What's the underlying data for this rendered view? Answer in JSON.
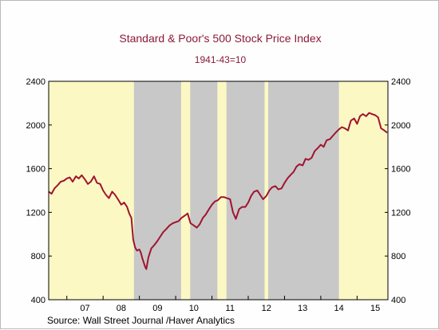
{
  "chart_data": {
    "type": "line",
    "title": "Standard & Poor's 500 Stock Price Index",
    "subtitle": "1941-43=10",
    "source": "Source:  Wall Street Journal /Haver Analytics",
    "ylim": [
      400,
      2400
    ],
    "yticks": [
      400,
      800,
      1200,
      1600,
      2000,
      2400
    ],
    "xlim": [
      2006.5,
      2015.85
    ],
    "x_tick_labels": [
      "07",
      "08",
      "09",
      "10",
      "11",
      "12",
      "13",
      "14",
      "15"
    ],
    "x_tick_positions": [
      2007.5,
      2008.5,
      2009.5,
      2010.5,
      2011.5,
      2012.5,
      2013.5,
      2014.5,
      2015.5
    ],
    "background_color": "#fbf8c4",
    "shade_color": "#c8c8c8",
    "line_color": "#a0142e",
    "shaded_periods": [
      [
        2008.85,
        2010.15
      ],
      [
        2010.4,
        2011.15
      ],
      [
        2011.4,
        2012.45
      ],
      [
        2012.55,
        2014.5
      ]
    ],
    "series": [
      {
        "x": [
          2006.5,
          2006.58,
          2006.66,
          2006.75,
          2006.83,
          2006.92,
          2007.0,
          2007.08,
          2007.16,
          2007.25,
          2007.33,
          2007.41,
          2007.5,
          2007.58,
          2007.66,
          2007.75,
          2007.83,
          2007.92,
          2008.0,
          2008.08,
          2008.16,
          2008.25,
          2008.33,
          2008.41,
          2008.5,
          2008.58,
          2008.66,
          2008.72,
          2008.78,
          2008.83,
          2008.88,
          2008.93,
          2009.0,
          2009.04,
          2009.08,
          2009.12,
          2009.16,
          2009.19,
          2009.25,
          2009.33,
          2009.41,
          2009.5,
          2009.58,
          2009.66,
          2009.75,
          2009.83,
          2009.92,
          2010.0,
          2010.08,
          2010.16,
          2010.25,
          2010.33,
          2010.41,
          2010.5,
          2010.58,
          2010.66,
          2010.75,
          2010.83,
          2010.92,
          2011.0,
          2011.08,
          2011.16,
          2011.25,
          2011.33,
          2011.41,
          2011.5,
          2011.58,
          2011.66,
          2011.75,
          2011.83,
          2011.92,
          2012.0,
          2012.08,
          2012.16,
          2012.25,
          2012.33,
          2012.41,
          2012.5,
          2012.58,
          2012.66,
          2012.75,
          2012.83,
          2012.92,
          2013.0,
          2013.08,
          2013.16,
          2013.25,
          2013.33,
          2013.41,
          2013.5,
          2013.58,
          2013.66,
          2013.75,
          2013.83,
          2013.92,
          2014.0,
          2014.08,
          2014.16,
          2014.25,
          2014.33,
          2014.41,
          2014.5,
          2014.58,
          2014.66,
          2014.75,
          2014.83,
          2014.92,
          2015.0,
          2015.08,
          2015.16,
          2015.25,
          2015.33,
          2015.41,
          2015.5,
          2015.58,
          2015.66,
          2015.75,
          2015.83
        ],
        "values": [
          1390,
          1370,
          1420,
          1450,
          1480,
          1490,
          1510,
          1520,
          1480,
          1530,
          1510,
          1540,
          1500,
          1460,
          1480,
          1530,
          1470,
          1460,
          1400,
          1360,
          1330,
          1390,
          1360,
          1320,
          1270,
          1290,
          1250,
          1190,
          1150,
          950,
          880,
          850,
          860,
          830,
          780,
          740,
          700,
          680,
          790,
          870,
          900,
          940,
          980,
          1020,
          1050,
          1080,
          1100,
          1110,
          1120,
          1150,
          1170,
          1190,
          1100,
          1080,
          1060,
          1090,
          1150,
          1180,
          1230,
          1270,
          1300,
          1310,
          1340,
          1340,
          1330,
          1320,
          1200,
          1140,
          1230,
          1250,
          1250,
          1290,
          1350,
          1390,
          1400,
          1360,
          1320,
          1350,
          1400,
          1430,
          1440,
          1410,
          1420,
          1470,
          1510,
          1540,
          1570,
          1620,
          1640,
          1630,
          1690,
          1680,
          1700,
          1760,
          1790,
          1820,
          1800,
          1860,
          1870,
          1900,
          1930,
          1960,
          1980,
          1970,
          1950,
          2040,
          2060,
          2010,
          2080,
          2100,
          2080,
          2110,
          2100,
          2090,
          2070,
          1970,
          1950,
          1930
        ]
      }
    ]
  }
}
